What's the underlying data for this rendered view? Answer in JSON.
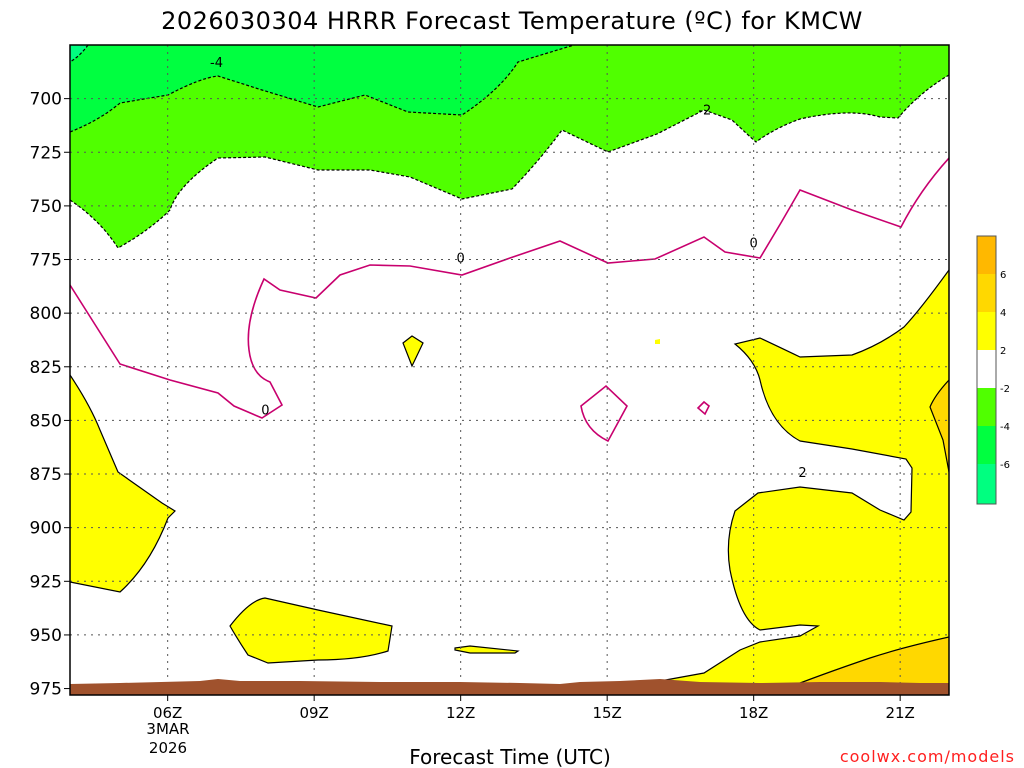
{
  "title": "2026030304 HRRR Forecast Temperature (ºC) for KMCW",
  "credit": "coolwx.com/models",
  "colors": {
    "lt_m6": "#00ff80",
    "m6_m4": "#00ff40",
    "m4_m2": "#50ff00",
    "m2_2": "#ffffff",
    "p2_4": "#ffff00",
    "p4_6": "#ffd800",
    "p6_8": "#ffb800",
    "ground": "#a0522d",
    "freezing_line": "#c8006e"
  },
  "chart_data": {
    "type": "contour",
    "title": "2026030304 HRRR Forecast Temperature (ºC) for KMCW",
    "xlabel": "Forecast Time (UTC)",
    "ylabel": "",
    "x_ticks": [
      "06Z",
      "09Z",
      "12Z",
      "15Z",
      "18Z",
      "21Z"
    ],
    "x_date_label": [
      "3MAR",
      "2026"
    ],
    "x_range_hours_utc": [
      4,
      22
    ],
    "y_ticks": [
      700,
      725,
      750,
      775,
      800,
      825,
      850,
      875,
      900,
      925,
      950,
      975
    ],
    "y_range_hPa": [
      675,
      978
    ],
    "y_reversed": true,
    "grid": true,
    "contour_levels": [
      -6,
      -4,
      -2,
      0,
      2,
      4,
      6
    ],
    "colorbar_labels": [
      "6",
      "4",
      "2",
      "-2",
      "-4",
      "-6"
    ],
    "contour_labels": [
      {
        "text": "-4",
        "x": 7.0,
        "y": 683
      },
      {
        "text": "-2",
        "x": 17.0,
        "y": 705
      },
      {
        "text": "0",
        "x": 12.0,
        "y": 774
      },
      {
        "text": "0",
        "x": 18.0,
        "y": 767
      },
      {
        "text": "0",
        "x": 8.0,
        "y": 845
      },
      {
        "text": "2",
        "x": 19.0,
        "y": 874
      }
    ]
  }
}
